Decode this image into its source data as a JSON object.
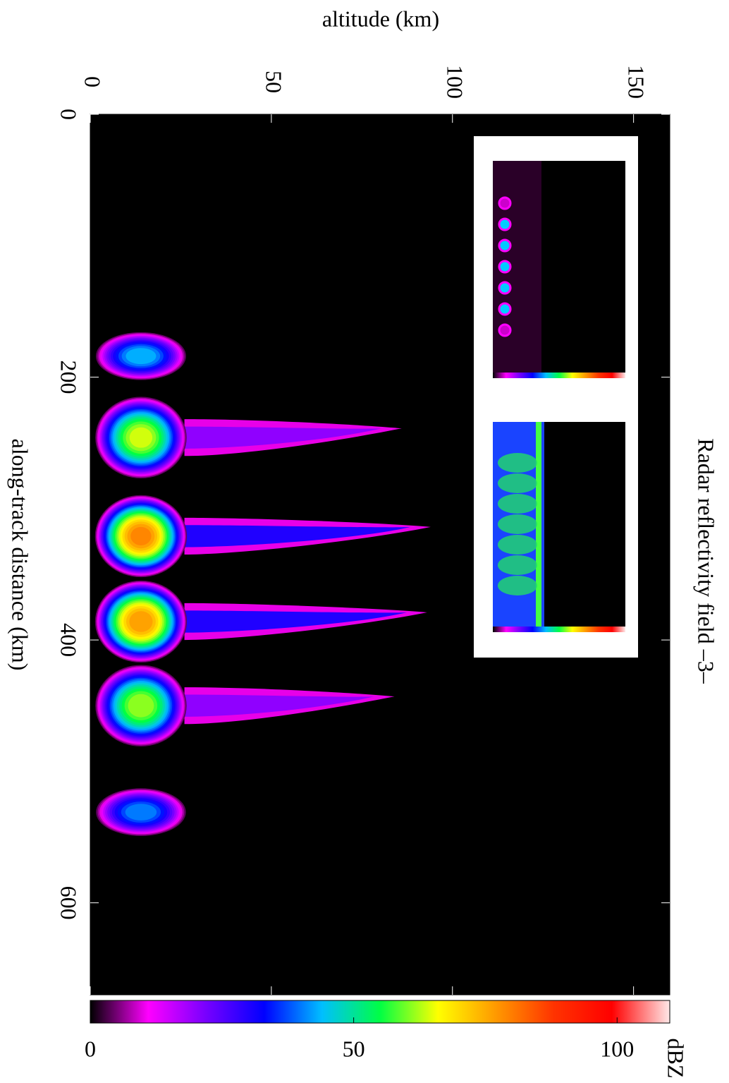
{
  "chart_data": {
    "type": "contour",
    "title": "Radar reflectivity field –3–",
    "x_label": "along-track distance (km)",
    "y_label": "altitude (km)",
    "xlim": [
      0,
      670
    ],
    "xticks": [
      0,
      200,
      400,
      600
    ],
    "ylim": [
      0,
      160
    ],
    "yticks": [
      0,
      50,
      100,
      150
    ],
    "cells": {
      "x": [
        184,
        246,
        321,
        386,
        450,
        531
      ],
      "peak": [
        45,
        65,
        80,
        78,
        63,
        42
      ],
      "top": [
        null,
        86,
        94,
        93,
        84,
        null
      ]
    },
    "colorbar": {
      "label": "dBZ",
      "lim": [
        0,
        110
      ],
      "ticks": [
        0,
        50,
        100
      ]
    },
    "colormap": [
      "#000000",
      "#ff00ff",
      "#7700ff",
      "#0000ff",
      "#00bfff",
      "#00ff44",
      "#ffff00",
      "#ff9900",
      "#ff3300",
      "#ff0000",
      "#ffe8e8"
    ],
    "background": "#000000"
  }
}
